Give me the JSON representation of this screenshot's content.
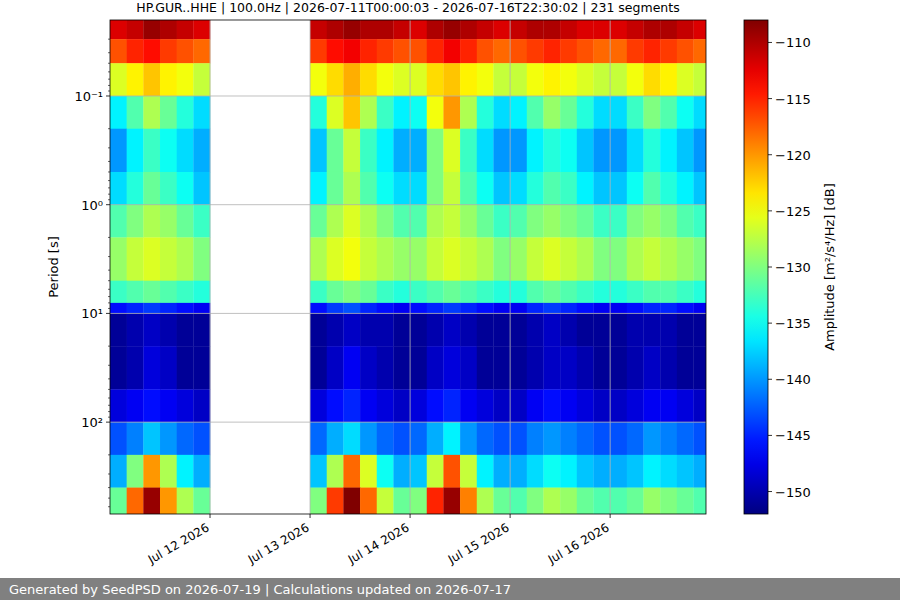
{
  "chart_data": {
    "type": "heatmap",
    "title": "HP.GUR..HHE | 100.0Hz | 2026-07-11T00:00:03 - 2026-07-16T22:30:02 | 231 segments",
    "footer": "Generated by SeedPSD on 2026-07-19 | Calculations updated on 2026-07-17",
    "y_label": "Period [s]",
    "colorbar_label": "Amplitude [m²/s⁴/Hz] [dB]",
    "log": "y",
    "grid": true,
    "xlim": [
      "2026-07-11T00:00:00",
      "2026-07-16T23:00:00"
    ],
    "ylim": [
      0.02,
      700
    ],
    "xticks": [
      {
        "value": "2026-07-12T00:00:00",
        "label": "Jul 12 2026"
      },
      {
        "value": "2026-07-13T00:00:00",
        "label": "Jul 13 2026"
      },
      {
        "value": "2026-07-14T00:00:00",
        "label": "Jul 14 2026"
      },
      {
        "value": "2026-07-15T00:00:00",
        "label": "Jul 15 2026"
      },
      {
        "value": "2026-07-16T00:00:00",
        "label": "Jul 16 2026"
      }
    ],
    "yticks": [
      {
        "value": 0.1,
        "label": "10⁻¹"
      },
      {
        "value": 1,
        "label": "10⁰"
      },
      {
        "value": 10,
        "label": "10¹"
      },
      {
        "value": 100,
        "label": "10²"
      }
    ],
    "x": [
      "2026-07-11T00:00:00",
      "2026-07-11T04:00:00",
      "2026-07-11T08:00:00",
      "2026-07-11T12:00:00",
      "2026-07-11T16:00:00",
      "2026-07-11T20:00:00",
      "2026-07-12T00:00:00",
      "2026-07-12T04:00:00",
      "2026-07-12T08:00:00",
      "2026-07-12T12:00:00",
      "2026-07-12T16:00:00",
      "2026-07-12T20:00:00",
      "2026-07-13T00:00:00",
      "2026-07-13T04:00:00",
      "2026-07-13T08:00:00",
      "2026-07-13T12:00:00",
      "2026-07-13T16:00:00",
      "2026-07-13T20:00:00",
      "2026-07-14T00:00:00",
      "2026-07-14T04:00:00",
      "2026-07-14T08:00:00",
      "2026-07-14T12:00:00",
      "2026-07-14T16:00:00",
      "2026-07-14T20:00:00",
      "2026-07-15T00:00:00",
      "2026-07-15T04:00:00",
      "2026-07-15T08:00:00",
      "2026-07-15T12:00:00",
      "2026-07-15T16:00:00",
      "2026-07-15T20:00:00",
      "2026-07-16T00:00:00",
      "2026-07-16T04:00:00",
      "2026-07-16T08:00:00",
      "2026-07-16T12:00:00",
      "2026-07-16T16:00:00",
      "2026-07-16T20:00:00",
      "2026-07-17T00:00:00"
    ],
    "y": [
      0.02,
      0.03,
      0.05,
      0.1,
      0.2,
      0.5,
      1,
      2,
      5,
      8,
      10,
      20,
      50,
      100,
      200,
      400,
      700
    ],
    "values": [
      [
        -112,
        -111,
        -109,
        -110,
        -111,
        -112,
        null,
        null,
        null,
        null,
        null,
        null,
        -111,
        -110,
        -109,
        -110,
        -110,
        -111,
        -112,
        -110,
        -109,
        -110,
        -111,
        -112,
        -111,
        -110,
        -110,
        -111,
        -112,
        -112,
        -112,
        -111,
        -110,
        -110,
        -111,
        -112
      ],
      [
        -117,
        -115,
        -114,
        -116,
        -117,
        -118,
        null,
        null,
        null,
        null,
        null,
        null,
        -116,
        -114,
        -113,
        -115,
        -116,
        -117,
        -117,
        -115,
        -113,
        -115,
        -117,
        -118,
        -117,
        -116,
        -115,
        -116,
        -117,
        -118,
        -118,
        -116,
        -115,
        -116,
        -117,
        -118
      ],
      [
        -126,
        -124,
        -122,
        -124,
        -125,
        -127,
        null,
        null,
        null,
        null,
        null,
        null,
        -125,
        -123,
        -121,
        -123,
        -125,
        -126,
        -126,
        -123,
        -122,
        -124,
        -125,
        -127,
        -127,
        -125,
        -124,
        -125,
        -126,
        -127,
        -127,
        -125,
        -123,
        -124,
        -126,
        -127
      ],
      [
        -136,
        -132,
        -128,
        -131,
        -134,
        -137,
        null,
        null,
        null,
        null,
        null,
        null,
        -134,
        -126,
        -122,
        -128,
        -133,
        -136,
        -135,
        -125,
        -120,
        -128,
        -134,
        -137,
        -136,
        -132,
        -129,
        -131,
        -134,
        -137,
        -137,
        -133,
        -130,
        -132,
        -135,
        -137
      ],
      [
        -140,
        -136,
        -133,
        -135,
        -137,
        -139,
        null,
        null,
        null,
        null,
        null,
        null,
        -138,
        -131,
        -127,
        -133,
        -136,
        -139,
        -139,
        -130,
        -126,
        -133,
        -137,
        -140,
        -140,
        -136,
        -134,
        -135,
        -138,
        -140,
        -140,
        -137,
        -134,
        -136,
        -138,
        -140
      ],
      [
        -137,
        -134,
        -131,
        -133,
        -135,
        -138,
        null,
        null,
        null,
        null,
        null,
        null,
        -136,
        -131,
        -128,
        -132,
        -135,
        -137,
        -137,
        -130,
        -127,
        -132,
        -135,
        -138,
        -137,
        -134,
        -132,
        -133,
        -136,
        -138,
        -138,
        -135,
        -132,
        -134,
        -136,
        -138
      ],
      [
        -132,
        -130,
        -128,
        -129,
        -131,
        -133,
        null,
        null,
        null,
        null,
        null,
        null,
        -131,
        -128,
        -126,
        -128,
        -130,
        -132,
        -132,
        -128,
        -127,
        -129,
        -131,
        -133,
        -132,
        -130,
        -129,
        -130,
        -131,
        -133,
        -133,
        -130,
        -129,
        -130,
        -132,
        -133
      ],
      [
        -129,
        -127,
        -126,
        -127,
        -128,
        -130,
        null,
        null,
        null,
        null,
        null,
        null,
        -128,
        -126,
        -125,
        -127,
        -128,
        -129,
        -129,
        -127,
        -126,
        -127,
        -128,
        -130,
        -129,
        -127,
        -126,
        -127,
        -128,
        -130,
        -130,
        -128,
        -127,
        -128,
        -129,
        -130
      ],
      [
        -133,
        -132,
        -131,
        -132,
        -133,
        -134,
        null,
        null,
        null,
        null,
        null,
        null,
        -133,
        -131,
        -130,
        -131,
        -133,
        -134,
        -133,
        -132,
        -131,
        -132,
        -133,
        -134,
        -134,
        -132,
        -131,
        -132,
        -133,
        -134,
        -134,
        -133,
        -132,
        -132,
        -133,
        -134
      ],
      [
        -146,
        -145,
        -144,
        -145,
        -146,
        -147,
        null,
        null,
        null,
        null,
        null,
        null,
        -146,
        -144,
        -143,
        -145,
        -146,
        -147,
        -146,
        -145,
        -144,
        -145,
        -146,
        -147,
        -147,
        -145,
        -144,
        -145,
        -146,
        -147,
        -147,
        -146,
        -145,
        -145,
        -146,
        -147
      ],
      [
        -151,
        -150,
        -149,
        -150,
        -151,
        -151,
        null,
        null,
        null,
        null,
        null,
        null,
        -151,
        -150,
        -149,
        -150,
        -150,
        -151,
        -151,
        -150,
        -149,
        -150,
        -151,
        -151,
        -151,
        -150,
        -149,
        -150,
        -151,
        -151,
        -151,
        -150,
        -150,
        -150,
        -151,
        -151
      ],
      [
        -151,
        -150,
        -148,
        -149,
        -151,
        -151,
        null,
        null,
        null,
        null,
        null,
        null,
        -151,
        -149,
        -147,
        -149,
        -150,
        -151,
        -151,
        -149,
        -148,
        -149,
        -151,
        -151,
        -151,
        -150,
        -149,
        -149,
        -150,
        -151,
        -151,
        -150,
        -149,
        -150,
        -151,
        -151
      ],
      [
        -148,
        -147,
        -146,
        -147,
        -148,
        -149,
        null,
        null,
        null,
        null,
        null,
        null,
        -148,
        -146,
        -145,
        -147,
        -148,
        -149,
        -148,
        -146,
        -145,
        -147,
        -148,
        -149,
        -149,
        -147,
        -146,
        -147,
        -148,
        -149,
        -149,
        -148,
        -147,
        -147,
        -148,
        -149
      ],
      [
        -143,
        -141,
        -138,
        -140,
        -142,
        -143,
        null,
        null,
        null,
        null,
        null,
        null,
        -142,
        -139,
        -137,
        -140,
        -142,
        -143,
        -142,
        -139,
        -136,
        -140,
        -142,
        -143,
        -143,
        -141,
        -140,
        -141,
        -142,
        -143,
        -143,
        -142,
        -140,
        -141,
        -142,
        -143
      ],
      [
        -139,
        -130,
        -120,
        -128,
        -136,
        -139,
        null,
        null,
        null,
        null,
        null,
        null,
        -138,
        -128,
        -118,
        -126,
        -135,
        -139,
        -138,
        -127,
        -117,
        -127,
        -136,
        -139,
        -139,
        -137,
        -135,
        -136,
        -138,
        -139,
        -139,
        -138,
        -136,
        -137,
        -138,
        -139
      ],
      [
        -131,
        -118,
        -109,
        -120,
        -128,
        -131,
        null,
        null,
        null,
        null,
        null,
        null,
        -130,
        -116,
        -108,
        -118,
        -127,
        -131,
        -130,
        -115,
        -109,
        -119,
        -128,
        -131,
        -132,
        -130,
        -128,
        -129,
        -131,
        -132,
        -132,
        -131,
        -129,
        -130,
        -131,
        -132
      ]
    ],
    "color_range": [
      -152,
      -108
    ],
    "color_ticks": [
      {
        "value": -150,
        "label": "−150"
      },
      {
        "value": -145,
        "label": "−145"
      },
      {
        "value": -140,
        "label": "−140"
      },
      {
        "value": -135,
        "label": "−135"
      },
      {
        "value": -130,
        "label": "−130"
      },
      {
        "value": -125,
        "label": "−125"
      },
      {
        "value": -120,
        "label": "−120"
      },
      {
        "value": -115,
        "label": "−115"
      },
      {
        "value": -110,
        "label": "−110"
      }
    ]
  }
}
